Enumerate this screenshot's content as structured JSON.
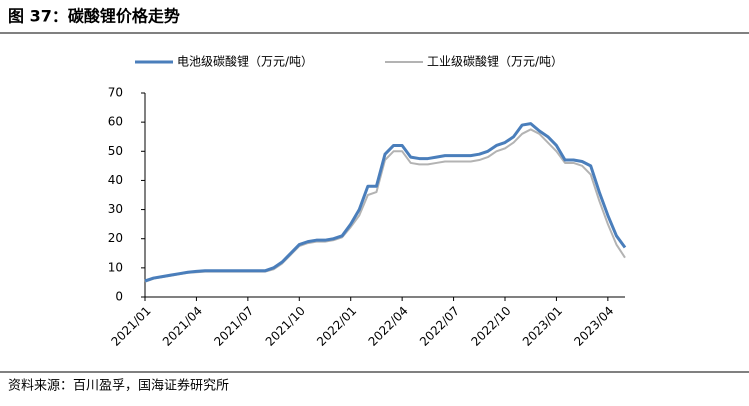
{
  "chart_data": {
    "type": "line",
    "title": "图 37：碳酸锂价格走势",
    "source": "资料来源：百川盈孚，国海证券研究所",
    "categories": [
      "2021/01",
      null,
      null,
      null,
      null,
      null,
      "2021/04",
      null,
      null,
      null,
      null,
      null,
      "2021/07",
      null,
      null,
      null,
      null,
      null,
      "2021/10",
      null,
      null,
      null,
      null,
      null,
      "2022/01",
      null,
      null,
      null,
      null,
      null,
      "2022/04",
      null,
      null,
      null,
      null,
      null,
      "2022/07",
      null,
      null,
      null,
      null,
      null,
      "2022/10",
      null,
      null,
      null,
      null,
      null,
      "2023/01",
      null,
      null,
      null,
      null,
      null,
      "2023/04",
      null,
      null
    ],
    "series": [
      {
        "name": "电池级碳酸锂（万元/吨）",
        "color": "#4a7ebb",
        "values": [
          5.5,
          6.5,
          7,
          7.5,
          8,
          8.5,
          8.8,
          9,
          9,
          9,
          9,
          9,
          9,
          9,
          9,
          10,
          12,
          15,
          18,
          19,
          19.5,
          19.5,
          20,
          21,
          25,
          30,
          38,
          38,
          49,
          52,
          52,
          48,
          47.5,
          47.5,
          48,
          48.5,
          48.5,
          48.5,
          48.5,
          49,
          50,
          52,
          53,
          55,
          59,
          59.5,
          57,
          55,
          52,
          47,
          47,
          46.5,
          45,
          36,
          28,
          21,
          17
        ]
      },
      {
        "name": "工业级碳酸锂（万元/吨）",
        "color": "#b3b3b3",
        "values": [
          5.2,
          6.3,
          6.8,
          7.3,
          7.8,
          8.3,
          8.5,
          8.7,
          8.7,
          8.7,
          8.7,
          8.7,
          8.7,
          8.7,
          8.7,
          9.5,
          11.5,
          14.5,
          17.5,
          18.5,
          19,
          19,
          19.5,
          20.5,
          24,
          28,
          35,
          36,
          47,
          50,
          50,
          46,
          45.5,
          45.5,
          46,
          46.5,
          46.5,
          46.5,
          46.5,
          47,
          48,
          50,
          51,
          53,
          56,
          57.5,
          56,
          53,
          50,
          46,
          46,
          45,
          42,
          33,
          25,
          18,
          13.5
        ]
      }
    ],
    "ylim": [
      0,
      70
    ],
    "yticks": [
      0,
      10,
      20,
      30,
      40,
      50,
      60,
      70
    ],
    "grid": false
  }
}
